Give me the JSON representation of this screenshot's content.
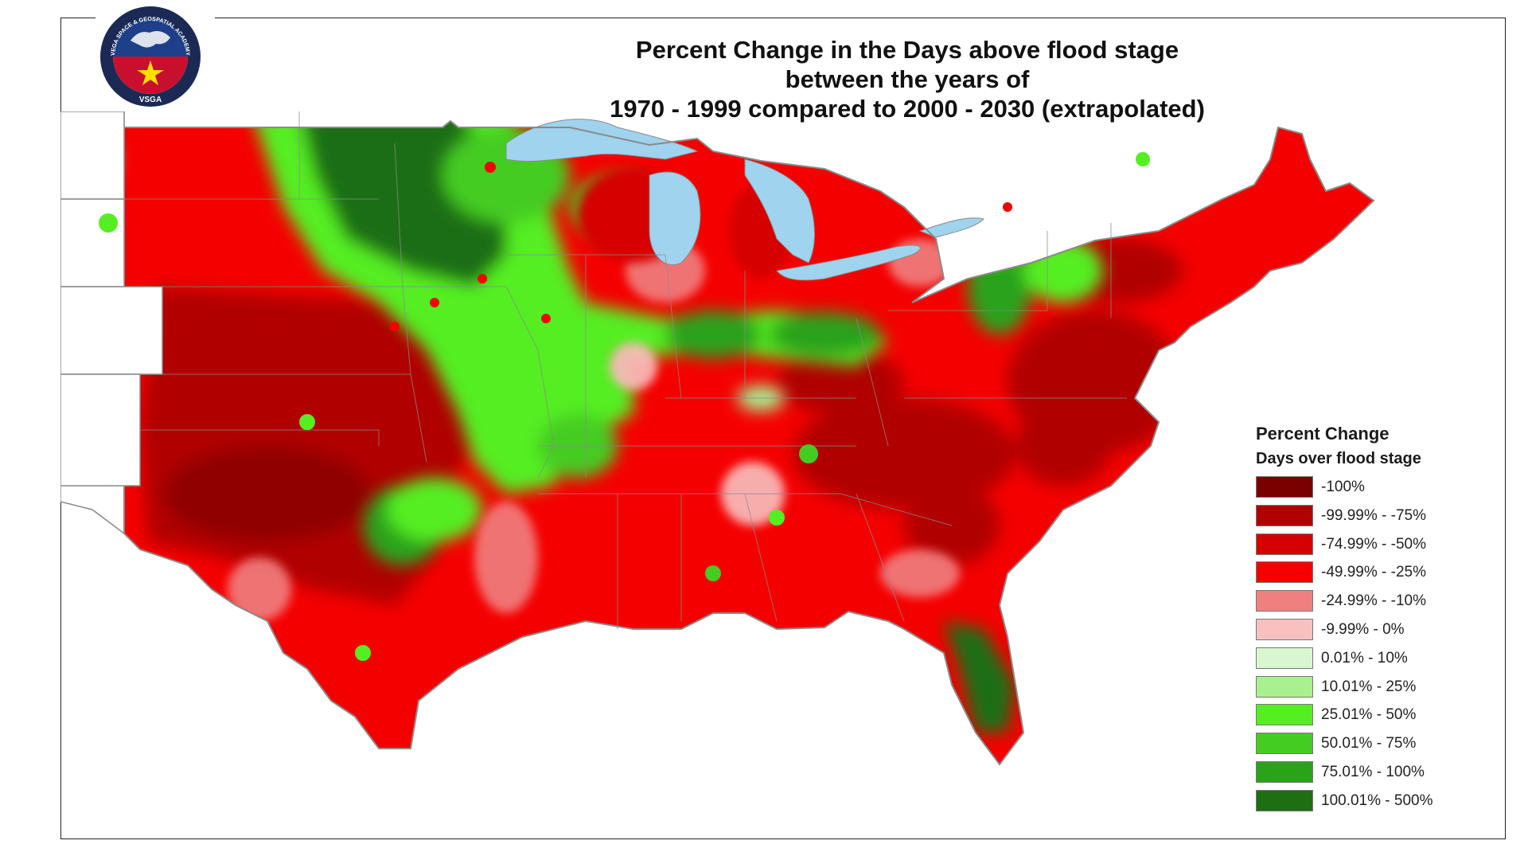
{
  "title": {
    "line1": "Percent Change in the Days above flood stage",
    "line2": "between the years of",
    "line3": "1970 - 1999 compared to 2000 - 2030 (extrapolated)"
  },
  "logo": {
    "ring_text": "VEGA SPACE & GEOSPATIAL ACADEMY",
    "abbrev": "VSGA"
  },
  "legend": {
    "title": "Percent Change",
    "subtitle": "Days over flood stage",
    "items": [
      {
        "label": "-100%",
        "color": "#7a0000"
      },
      {
        "label": "-99.99% - -75%",
        "color": "#b10000"
      },
      {
        "label": "-74.99% - -50%",
        "color": "#d60000"
      },
      {
        "label": "-49.99% - -25%",
        "color": "#f50000"
      },
      {
        "label": "-24.99% - -10%",
        "color": "#f08080"
      },
      {
        "label": "-9.99% - 0%",
        "color": "#f9c0c0"
      },
      {
        "label": "0.01% - 10%",
        "color": "#d8f7d0"
      },
      {
        "label": "10.01% - 25%",
        "color": "#a8f090"
      },
      {
        "label": "25.01% - 50%",
        "color": "#55ee22"
      },
      {
        "label": "50.01% - 75%",
        "color": "#44cc22"
      },
      {
        "label": "75.01% - 100%",
        "color": "#2aa21a"
      },
      {
        "label": "100.01% - 500%",
        "color": "#1e6e14"
      }
    ]
  },
  "colors": {
    "water": "#9fd3ee",
    "border": "#8a8a8a"
  }
}
